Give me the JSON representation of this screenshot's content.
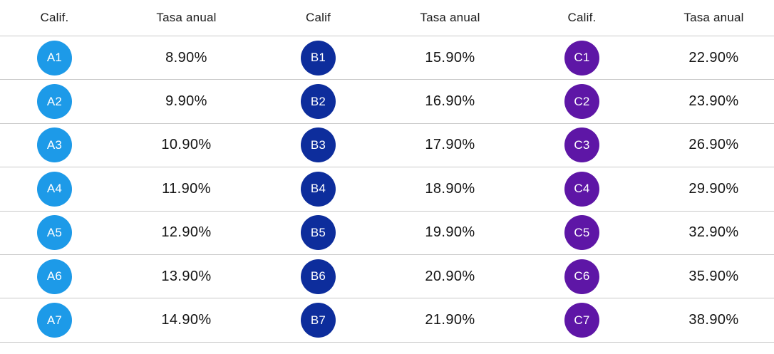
{
  "table": {
    "groups": [
      {
        "calif_header": "Calif.",
        "rate_header": "Tasa anual",
        "badge_color": "#1d9ae8",
        "rows": [
          {
            "grade": "A1",
            "rate": "8.90%"
          },
          {
            "grade": "A2",
            "rate": "9.90%"
          },
          {
            "grade": "A3",
            "rate": "10.90%"
          },
          {
            "grade": "A4",
            "rate": "11.90%"
          },
          {
            "grade": "A5",
            "rate": "12.90%"
          },
          {
            "grade": "A6",
            "rate": "13.90%"
          },
          {
            "grade": "A7",
            "rate": "14.90%"
          }
        ]
      },
      {
        "calif_header": "Calif",
        "rate_header": "Tasa anual",
        "badge_color": "#0d2d9c",
        "rows": [
          {
            "grade": "B1",
            "rate": "15.90%"
          },
          {
            "grade": "B2",
            "rate": "16.90%"
          },
          {
            "grade": "B3",
            "rate": "17.90%"
          },
          {
            "grade": "B4",
            "rate": "18.90%"
          },
          {
            "grade": "B5",
            "rate": "19.90%"
          },
          {
            "grade": "B6",
            "rate": "20.90%"
          },
          {
            "grade": "B7",
            "rate": "21.90%"
          }
        ]
      },
      {
        "calif_header": "Calif.",
        "rate_header": "Tasa anual",
        "badge_color": "#5e16a6",
        "rows": [
          {
            "grade": "C1",
            "rate": "22.90%"
          },
          {
            "grade": "C2",
            "rate": "23.90%"
          },
          {
            "grade": "C3",
            "rate": "26.90%"
          },
          {
            "grade": "C4",
            "rate": "29.90%"
          },
          {
            "grade": "C5",
            "rate": "32.90%"
          },
          {
            "grade": "C6",
            "rate": "35.90%"
          },
          {
            "grade": "C7",
            "rate": "38.90%"
          }
        ]
      }
    ]
  },
  "colors": {
    "divider": "#c9c9c9",
    "header_text": "#1c1c1c",
    "rate_text": "#141414",
    "badge_text": "#ffffff",
    "badge_a": "#1d9ae8",
    "badge_b": "#0d2d9c",
    "badge_c": "#5e16a6"
  }
}
